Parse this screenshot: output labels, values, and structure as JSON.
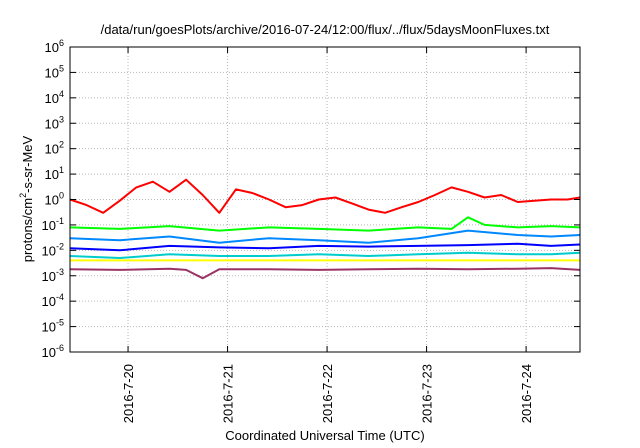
{
  "chart_data": {
    "type": "line",
    "title": "/data/run/goesPlots/archive/2016-07-24/12:00/flux/../flux/5daysMoonFluxes.txt",
    "xlabel": "Coordinated Universal Time (UTC)",
    "ylabel": "protons/cm²-s-sr-MeV",
    "ylabel_parts": {
      "base": "protons/cm",
      "sup": "2",
      "rest": "-s-sr-MeV"
    },
    "yscale": "log",
    "ylim_exp": [
      -6,
      6
    ],
    "ytick_base": "10",
    "ytick_exponents": [
      "6",
      "5",
      "4",
      "3",
      "2",
      "1",
      "0",
      "-1",
      "-2",
      "-3",
      "-4",
      "-5",
      "-6"
    ],
    "xlim": [
      "2016-07-19 10:00",
      "2016-07-24 13:00"
    ],
    "xticks": [
      "2016-7-20",
      "2016-7-21",
      "2016-7-22",
      "2016-7-23",
      "2016-7-24"
    ],
    "grid": true,
    "series": [
      {
        "color": "#ff0000",
        "x": [
          "2016-07-19 10:00",
          "2016-07-19 14:00",
          "2016-07-19 18:00",
          "2016-07-19 22:00",
          "2016-07-20 02:00",
          "2016-07-20 06:00",
          "2016-07-20 10:00",
          "2016-07-20 14:00",
          "2016-07-20 18:00",
          "2016-07-20 22:00",
          "2016-07-21 02:00",
          "2016-07-21 06:00",
          "2016-07-21 10:00",
          "2016-07-21 14:00",
          "2016-07-21 18:00",
          "2016-07-21 22:00",
          "2016-07-22 02:00",
          "2016-07-22 06:00",
          "2016-07-22 10:00",
          "2016-07-22 14:00",
          "2016-07-22 18:00",
          "2016-07-22 22:00",
          "2016-07-23 02:00",
          "2016-07-23 06:00",
          "2016-07-23 10:00",
          "2016-07-23 14:00",
          "2016-07-23 18:00",
          "2016-07-23 22:00",
          "2016-07-24 02:00",
          "2016-07-24 06:00",
          "2016-07-24 10:00",
          "2016-07-24 13:00"
        ],
        "y": [
          1.0,
          0.6,
          0.3,
          0.9,
          3.0,
          5.0,
          2.0,
          6.0,
          1.5,
          0.3,
          2.5,
          1.8,
          1.0,
          0.5,
          0.6,
          1.0,
          1.2,
          0.7,
          0.4,
          0.3,
          0.5,
          0.8,
          1.5,
          3.0,
          2.0,
          1.2,
          1.5,
          0.8,
          0.9,
          1.0,
          1.0,
          1.2
        ]
      },
      {
        "color": "#00ff00",
        "x": [
          "2016-07-19 10:00",
          "2016-07-19 22:00",
          "2016-07-20 10:00",
          "2016-07-20 22:00",
          "2016-07-21 10:00",
          "2016-07-21 22:00",
          "2016-07-22 10:00",
          "2016-07-22 22:00",
          "2016-07-23 06:00",
          "2016-07-23 10:00",
          "2016-07-23 14:00",
          "2016-07-23 22:00",
          "2016-07-24 06:00",
          "2016-07-24 13:00"
        ],
        "y": [
          0.08,
          0.07,
          0.09,
          0.06,
          0.08,
          0.07,
          0.06,
          0.08,
          0.07,
          0.2,
          0.1,
          0.08,
          0.09,
          0.08
        ]
      },
      {
        "color": "#0088ff",
        "x": [
          "2016-07-19 10:00",
          "2016-07-19 22:00",
          "2016-07-20 10:00",
          "2016-07-20 22:00",
          "2016-07-21 10:00",
          "2016-07-21 22:00",
          "2016-07-22 10:00",
          "2016-07-22 22:00",
          "2016-07-23 10:00",
          "2016-07-23 22:00",
          "2016-07-24 06:00",
          "2016-07-24 13:00"
        ],
        "y": [
          0.03,
          0.025,
          0.035,
          0.02,
          0.03,
          0.025,
          0.02,
          0.03,
          0.06,
          0.04,
          0.035,
          0.04
        ]
      },
      {
        "color": "#0000ff",
        "x": [
          "2016-07-19 10:00",
          "2016-07-19 22:00",
          "2016-07-20 10:00",
          "2016-07-20 22:00",
          "2016-07-21 10:00",
          "2016-07-21 22:00",
          "2016-07-22 10:00",
          "2016-07-22 22:00",
          "2016-07-23 10:00",
          "2016-07-23 22:00",
          "2016-07-24 06:00",
          "2016-07-24 13:00"
        ],
        "y": [
          0.012,
          0.01,
          0.015,
          0.013,
          0.012,
          0.015,
          0.014,
          0.015,
          0.016,
          0.018,
          0.015,
          0.017
        ]
      },
      {
        "color": "#00cccc",
        "x": [
          "2016-07-19 10:00",
          "2016-07-19 22:00",
          "2016-07-20 10:00",
          "2016-07-20 22:00",
          "2016-07-21 10:00",
          "2016-07-21 22:00",
          "2016-07-22 10:00",
          "2016-07-22 22:00",
          "2016-07-23 10:00",
          "2016-07-23 22:00",
          "2016-07-24 06:00",
          "2016-07-24 13:00"
        ],
        "y": [
          0.006,
          0.005,
          0.007,
          0.006,
          0.006,
          0.007,
          0.006,
          0.007,
          0.008,
          0.007,
          0.007,
          0.008
        ]
      },
      {
        "color": "#ffff00",
        "x": [
          "2016-07-19 10:00",
          "2016-07-20 10:00",
          "2016-07-21 10:00",
          "2016-07-22 10:00",
          "2016-07-23 10:00",
          "2016-07-24 13:00"
        ],
        "y": [
          0.004,
          0.004,
          0.004,
          0.004,
          0.004,
          0.004
        ]
      },
      {
        "color": "#993366",
        "x": [
          "2016-07-19 10:00",
          "2016-07-19 22:00",
          "2016-07-20 10:00",
          "2016-07-20 14:00",
          "2016-07-20 18:00",
          "2016-07-20 22:00",
          "2016-07-21 10:00",
          "2016-07-21 22:00",
          "2016-07-22 10:00",
          "2016-07-22 22:00",
          "2016-07-23 10:00",
          "2016-07-23 22:00",
          "2016-07-24 06:00",
          "2016-07-24 13:00"
        ],
        "y": [
          0.0018,
          0.0017,
          0.0019,
          0.0017,
          0.0008,
          0.0018,
          0.0018,
          0.0017,
          0.0018,
          0.0019,
          0.0018,
          0.0019,
          0.002,
          0.0017
        ]
      }
    ]
  }
}
